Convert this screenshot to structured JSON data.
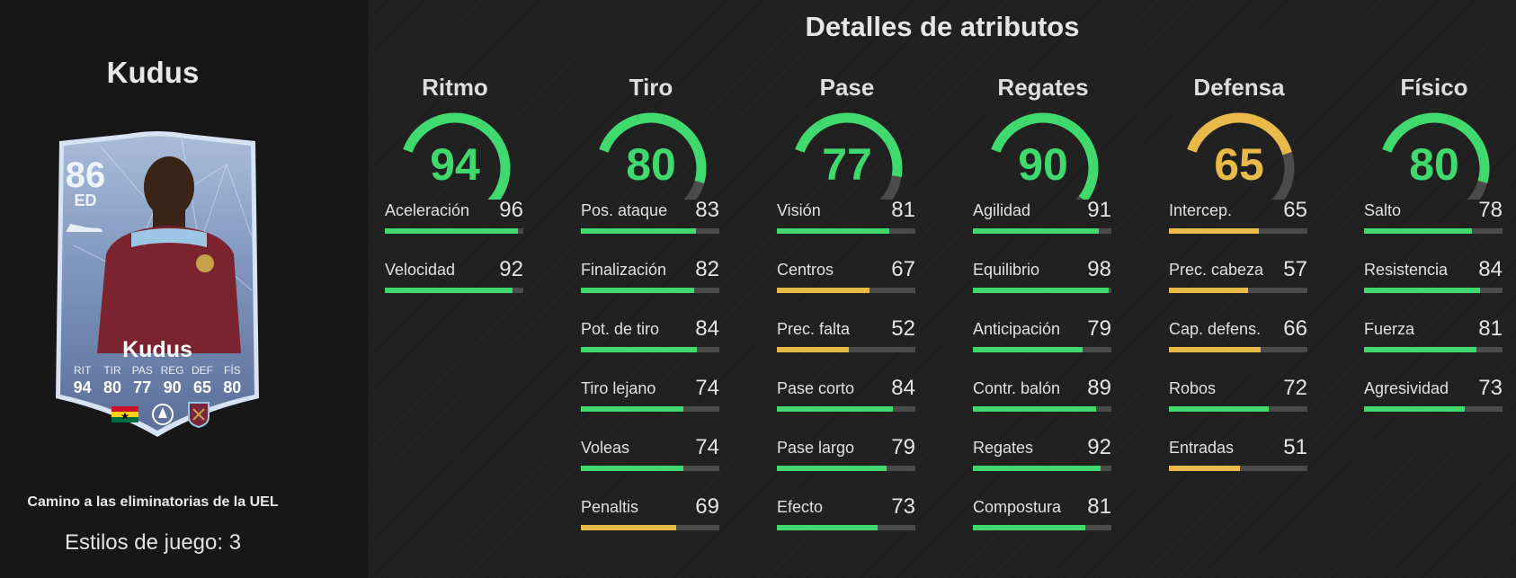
{
  "player": {
    "name": "Kudus",
    "rating": "86",
    "position": "ED",
    "card_stats": [
      {
        "label": "RIT",
        "value": "94"
      },
      {
        "label": "TIR",
        "value": "80"
      },
      {
        "label": "PAS",
        "value": "77"
      },
      {
        "label": "REG",
        "value": "90"
      },
      {
        "label": "DEF",
        "value": "65"
      },
      {
        "label": "FÍS",
        "value": "80"
      }
    ]
  },
  "promo_title": "Camino a las eliminatorias de la UEL",
  "play_styles": "Estilos de juego: 3",
  "section_title": "Detalles de atributos",
  "colors": {
    "green": "#3fd96e",
    "yellow": "#e9b94a",
    "track": "#4a4b4a"
  },
  "categories": [
    {
      "title": "Ritmo",
      "value": 94,
      "color": "green",
      "stats": [
        {
          "name": "Aceleración",
          "value": 96,
          "color": "green"
        },
        {
          "name": "Velocidad",
          "value": 92,
          "color": "green"
        }
      ]
    },
    {
      "title": "Tiro",
      "value": 80,
      "color": "green",
      "stats": [
        {
          "name": "Pos. ataque",
          "value": 83,
          "color": "green"
        },
        {
          "name": "Finalización",
          "value": 82,
          "color": "green"
        },
        {
          "name": "Pot. de tiro",
          "value": 84,
          "color": "green"
        },
        {
          "name": "Tiro lejano",
          "value": 74,
          "color": "green"
        },
        {
          "name": "Voleas",
          "value": 74,
          "color": "green"
        },
        {
          "name": "Penaltis",
          "value": 69,
          "color": "yellow"
        }
      ]
    },
    {
      "title": "Pase",
      "value": 77,
      "color": "green",
      "stats": [
        {
          "name": "Visión",
          "value": 81,
          "color": "green"
        },
        {
          "name": "Centros",
          "value": 67,
          "color": "yellow"
        },
        {
          "name": "Prec. falta",
          "value": 52,
          "color": "yellow"
        },
        {
          "name": "Pase corto",
          "value": 84,
          "color": "green"
        },
        {
          "name": "Pase largo",
          "value": 79,
          "color": "green"
        },
        {
          "name": "Efecto",
          "value": 73,
          "color": "green"
        }
      ]
    },
    {
      "title": "Regates",
      "value": 90,
      "color": "green",
      "stats": [
        {
          "name": "Agilidad",
          "value": 91,
          "color": "green"
        },
        {
          "name": "Equilibrio",
          "value": 98,
          "color": "green"
        },
        {
          "name": "Anticipación",
          "value": 79,
          "color": "green"
        },
        {
          "name": "Contr. balón",
          "value": 89,
          "color": "green"
        },
        {
          "name": "Regates",
          "value": 92,
          "color": "green"
        },
        {
          "name": "Compostura",
          "value": 81,
          "color": "green"
        }
      ]
    },
    {
      "title": "Defensa",
      "value": 65,
      "color": "yellow",
      "stats": [
        {
          "name": "Intercep.",
          "value": 65,
          "color": "yellow"
        },
        {
          "name": "Prec. cabeza",
          "value": 57,
          "color": "yellow"
        },
        {
          "name": "Cap. defens.",
          "value": 66,
          "color": "yellow"
        },
        {
          "name": "Robos",
          "value": 72,
          "color": "green"
        },
        {
          "name": "Entradas",
          "value": 51,
          "color": "yellow"
        }
      ]
    },
    {
      "title": "Físico",
      "value": 80,
      "color": "green",
      "stats": [
        {
          "name": "Salto",
          "value": 78,
          "color": "green"
        },
        {
          "name": "Resistencia",
          "value": 84,
          "color": "green"
        },
        {
          "name": "Fuerza",
          "value": 81,
          "color": "green"
        },
        {
          "name": "Agresividad",
          "value": 73,
          "color": "green"
        }
      ]
    }
  ]
}
